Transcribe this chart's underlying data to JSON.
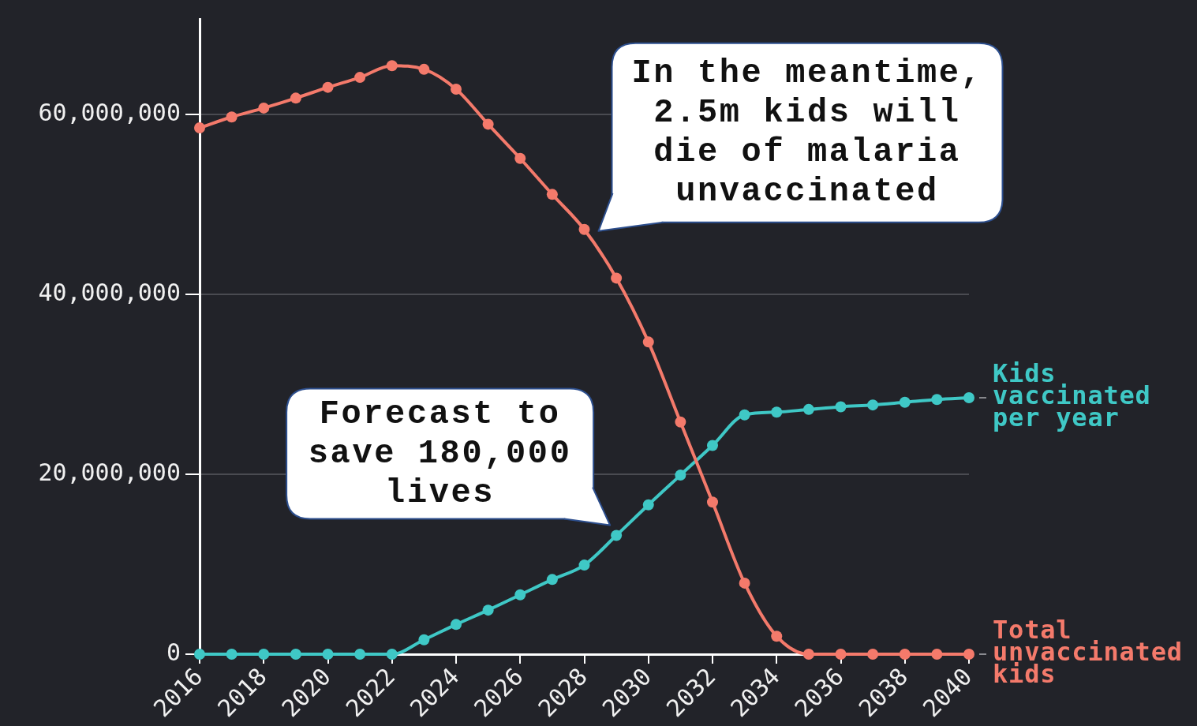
{
  "chart_data": {
    "type": "line",
    "x": [
      2016,
      2017,
      2018,
      2019,
      2020,
      2021,
      2022,
      2023,
      2024,
      2025,
      2026,
      2027,
      2028,
      2029,
      2030,
      2031,
      2032,
      2033,
      2034,
      2035,
      2036,
      2037,
      2038,
      2039,
      2040
    ],
    "xlim": [
      2016,
      2040
    ],
    "xticks": [
      2016,
      2018,
      2020,
      2022,
      2024,
      2026,
      2028,
      2030,
      2032,
      2034,
      2036,
      2038,
      2040
    ],
    "ylim": [
      0,
      70600000
    ],
    "yticks": [
      0,
      {
        "value": 20000000,
        "label": "20,000,000"
      },
      {
        "value": 40000000,
        "label": "40,000,000"
      },
      {
        "value": 60000000,
        "label": "60,000,000"
      }
    ],
    "grid": "y",
    "marker": "circle",
    "line_style": "solid",
    "series": [
      {
        "name": "Total unvaccinated kids",
        "color": "#f47a6b",
        "values": [
          58500000,
          59700000,
          60700000,
          61800000,
          63000000,
          64100000,
          65400000,
          65000000,
          62800000,
          58900000,
          55100000,
          51100000,
          47200000,
          41800000,
          34700000,
          25800000,
          16900000,
          7900000,
          2000000,
          0,
          0,
          0,
          0,
          0,
          0
        ]
      },
      {
        "name": "Kids vaccinated per year",
        "color": "#3fc8c6",
        "values": [
          0,
          0,
          0,
          0,
          0,
          0,
          0,
          1600000,
          3300000,
          4900000,
          6600000,
          8300000,
          9900000,
          13200000,
          16600000,
          19900000,
          23200000,
          26600000,
          26900000,
          27200000,
          27500000,
          27700000,
          28000000,
          28300000,
          28500000
        ]
      }
    ],
    "annotations": [
      {
        "text": "In the meantime, 2.5m kids will die of malaria unvaccinated",
        "x": 2028,
        "y": 47200000
      },
      {
        "text": "Forecast to save 180,000 lives",
        "x": 2029,
        "y": 13200000
      }
    ]
  }
}
